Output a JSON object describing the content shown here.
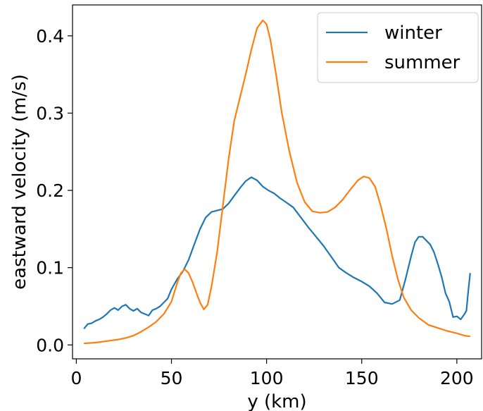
{
  "chart_data": {
    "type": "line",
    "xlabel": "y (km)",
    "ylabel": "eastward velocity (m/s)",
    "xlim": [
      -2,
      213
    ],
    "ylim": [
      -0.018,
      0.44
    ],
    "x_ticks": [
      0,
      50,
      100,
      150,
      200
    ],
    "x_tick_labels": [
      "0",
      "50",
      "100",
      "150",
      "200"
    ],
    "y_ticks": [
      0.0,
      0.1,
      0.2,
      0.3,
      0.4
    ],
    "y_tick_labels": [
      "0.0",
      "0.1",
      "0.2",
      "0.3",
      "0.4"
    ],
    "grid": false,
    "legend_position": "top-right",
    "series": [
      {
        "name": "winter",
        "color": "#1f77b4",
        "points": [
          [
            4,
            0.021
          ],
          [
            6,
            0.027
          ],
          [
            8,
            0.028
          ],
          [
            10,
            0.031
          ],
          [
            12,
            0.033
          ],
          [
            14,
            0.036
          ],
          [
            16,
            0.04
          ],
          [
            18,
            0.045
          ],
          [
            20,
            0.048
          ],
          [
            22,
            0.045
          ],
          [
            24,
            0.05
          ],
          [
            26,
            0.052
          ],
          [
            28,
            0.047
          ],
          [
            30,
            0.044
          ],
          [
            32,
            0.047
          ],
          [
            34,
            0.042
          ],
          [
            36,
            0.04
          ],
          [
            38,
            0.038
          ],
          [
            40,
            0.045
          ],
          [
            42,
            0.047
          ],
          [
            44,
            0.05
          ],
          [
            46,
            0.055
          ],
          [
            48,
            0.06
          ],
          [
            50,
            0.072
          ],
          [
            53,
            0.085
          ],
          [
            56,
            0.095
          ],
          [
            59,
            0.11
          ],
          [
            62,
            0.13
          ],
          [
            65,
            0.15
          ],
          [
            68,
            0.165
          ],
          [
            71,
            0.172
          ],
          [
            74,
            0.174
          ],
          [
            77,
            0.176
          ],
          [
            80,
            0.183
          ],
          [
            83,
            0.193
          ],
          [
            86,
            0.203
          ],
          [
            89,
            0.212
          ],
          [
            92,
            0.217
          ],
          [
            95,
            0.213
          ],
          [
            98,
            0.205
          ],
          [
            101,
            0.2
          ],
          [
            104,
            0.196
          ],
          [
            107,
            0.19
          ],
          [
            110,
            0.185
          ],
          [
            114,
            0.178
          ],
          [
            118,
            0.165
          ],
          [
            122,
            0.152
          ],
          [
            126,
            0.14
          ],
          [
            130,
            0.128
          ],
          [
            134,
            0.114
          ],
          [
            138,
            0.1
          ],
          [
            142,
            0.093
          ],
          [
            146,
            0.087
          ],
          [
            150,
            0.082
          ],
          [
            154,
            0.076
          ],
          [
            158,
            0.067
          ],
          [
            162,
            0.055
          ],
          [
            166,
            0.053
          ],
          [
            170,
            0.058
          ],
          [
            173,
            0.085
          ],
          [
            176,
            0.115
          ],
          [
            178,
            0.133
          ],
          [
            180,
            0.14
          ],
          [
            182,
            0.14
          ],
          [
            184,
            0.135
          ],
          [
            186,
            0.13
          ],
          [
            188,
            0.12
          ],
          [
            190,
            0.105
          ],
          [
            192,
            0.088
          ],
          [
            194,
            0.067
          ],
          [
            196,
            0.056
          ],
          [
            198,
            0.036
          ],
          [
            200,
            0.037
          ],
          [
            202,
            0.033
          ],
          [
            204,
            0.04
          ],
          [
            205,
            0.044
          ],
          [
            206,
            0.07
          ],
          [
            207,
            0.093
          ]
        ]
      },
      {
        "name": "summer",
        "color": "#ff7f0e",
        "points": [
          [
            4,
            0.002
          ],
          [
            10,
            0.003
          ],
          [
            16,
            0.005
          ],
          [
            22,
            0.007
          ],
          [
            26,
            0.009
          ],
          [
            30,
            0.012
          ],
          [
            34,
            0.017
          ],
          [
            38,
            0.023
          ],
          [
            42,
            0.03
          ],
          [
            46,
            0.04
          ],
          [
            50,
            0.056
          ],
          [
            53,
            0.08
          ],
          [
            55,
            0.093
          ],
          [
            57,
            0.098
          ],
          [
            59,
            0.093
          ],
          [
            61,
            0.082
          ],
          [
            63,
            0.068
          ],
          [
            65,
            0.055
          ],
          [
            67,
            0.046
          ],
          [
            69,
            0.052
          ],
          [
            71,
            0.075
          ],
          [
            74,
            0.12
          ],
          [
            77,
            0.18
          ],
          [
            80,
            0.24
          ],
          [
            83,
            0.29
          ],
          [
            86,
            0.32
          ],
          [
            89,
            0.35
          ],
          [
            92,
            0.382
          ],
          [
            95,
            0.41
          ],
          [
            98,
            0.42
          ],
          [
            100,
            0.415
          ],
          [
            102,
            0.395
          ],
          [
            105,
            0.35
          ],
          [
            108,
            0.3
          ],
          [
            112,
            0.25
          ],
          [
            116,
            0.21
          ],
          [
            120,
            0.185
          ],
          [
            124,
            0.173
          ],
          [
            128,
            0.171
          ],
          [
            132,
            0.172
          ],
          [
            136,
            0.178
          ],
          [
            140,
            0.188
          ],
          [
            144,
            0.201
          ],
          [
            148,
            0.213
          ],
          [
            151,
            0.218
          ],
          [
            154,
            0.216
          ],
          [
            157,
            0.205
          ],
          [
            160,
            0.18
          ],
          [
            163,
            0.15
          ],
          [
            166,
            0.115
          ],
          [
            169,
            0.085
          ],
          [
            172,
            0.062
          ],
          [
            176,
            0.045
          ],
          [
            180,
            0.035
          ],
          [
            185,
            0.026
          ],
          [
            190,
            0.022
          ],
          [
            195,
            0.018
          ],
          [
            200,
            0.015
          ],
          [
            204,
            0.012
          ],
          [
            207,
            0.011
          ]
        ]
      }
    ]
  }
}
